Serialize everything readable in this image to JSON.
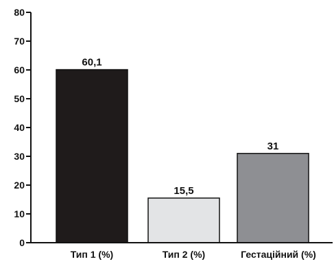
{
  "chart_data": {
    "type": "bar",
    "categories": [
      "Тип 1 (%)",
      "Тип 2 (%)",
      "Гестаційний (%)"
    ],
    "values": [
      60.1,
      15.5,
      31
    ],
    "value_labels": [
      "60,1",
      "15,5",
      "31"
    ],
    "bar_colors": [
      "#1f1b1b",
      "#e3e4e6",
      "#8e8f93"
    ],
    "title": "",
    "xlabel": "",
    "ylabel": "",
    "ylim": [
      0,
      80
    ],
    "yticks": [
      "0",
      "10",
      "20",
      "30",
      "40",
      "50",
      "60",
      "70",
      "80"
    ],
    "grid": false,
    "legend": "none"
  }
}
